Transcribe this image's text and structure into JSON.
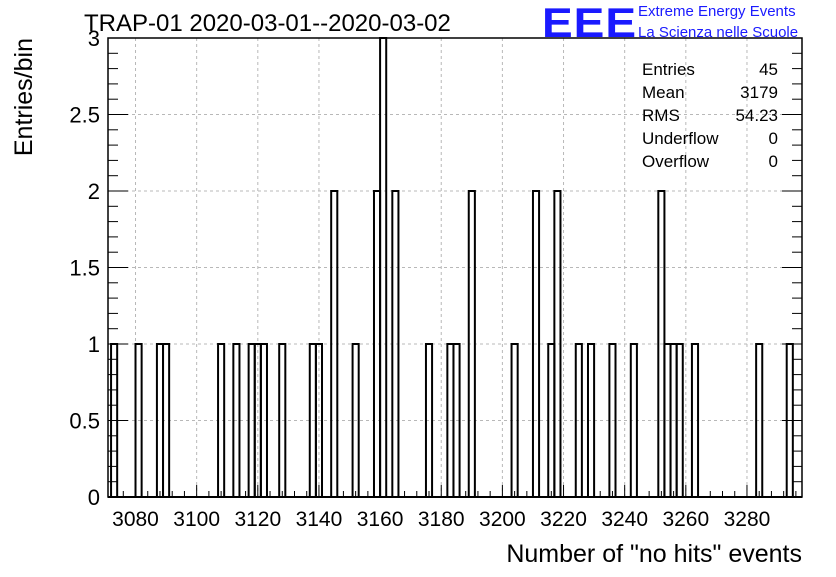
{
  "header": {
    "title": "TRAP-01 2020-03-01--2020-03-02",
    "logo_text": "EEE",
    "logo_line1": "Extreme Energy Events",
    "logo_line2": "La Scienza nelle Scuole",
    "logo_color": "#1a1aff"
  },
  "stats": [
    {
      "label": "Entries",
      "value": "45"
    },
    {
      "label": "Mean",
      "value": "3179"
    },
    {
      "label": "RMS",
      "value": "54.23"
    },
    {
      "label": "Underflow",
      "value": "0"
    },
    {
      "label": "Overflow",
      "value": "0"
    }
  ],
  "chart_data": {
    "type": "bar",
    "title": "TRAP-01 2020-03-01--2020-03-02",
    "xlabel": "Number of \"no hits\" events",
    "ylabel": "Entries/bin",
    "xlim": [
      3071,
      3298
    ],
    "ylim": [
      0,
      3
    ],
    "bin_width": 2,
    "grid": true,
    "xticks": [
      3080,
      3100,
      3120,
      3140,
      3160,
      3180,
      3200,
      3220,
      3240,
      3260,
      3280
    ],
    "yticks": [
      0,
      0.5,
      1,
      1.5,
      2,
      2.5,
      3
    ],
    "ytick_labels": [
      "0",
      "0.5",
      "1",
      "1.5",
      "2",
      "2.5",
      "3"
    ],
    "bins": [
      {
        "x": 3072,
        "count": 1
      },
      {
        "x": 3080,
        "count": 1
      },
      {
        "x": 3087,
        "count": 1
      },
      {
        "x": 3089,
        "count": 1
      },
      {
        "x": 3107,
        "count": 1
      },
      {
        "x": 3112,
        "count": 1
      },
      {
        "x": 3117,
        "count": 1
      },
      {
        "x": 3119,
        "count": 1
      },
      {
        "x": 3121,
        "count": 1
      },
      {
        "x": 3127,
        "count": 1
      },
      {
        "x": 3137,
        "count": 1
      },
      {
        "x": 3139,
        "count": 1
      },
      {
        "x": 3144,
        "count": 2
      },
      {
        "x": 3151,
        "count": 1
      },
      {
        "x": 3158,
        "count": 2
      },
      {
        "x": 3160,
        "count": 3
      },
      {
        "x": 3164,
        "count": 2
      },
      {
        "x": 3175,
        "count": 1
      },
      {
        "x": 3182,
        "count": 1
      },
      {
        "x": 3184,
        "count": 1
      },
      {
        "x": 3189,
        "count": 2
      },
      {
        "x": 3203,
        "count": 1
      },
      {
        "x": 3210,
        "count": 2
      },
      {
        "x": 3215,
        "count": 1
      },
      {
        "x": 3217,
        "count": 2
      },
      {
        "x": 3224,
        "count": 1
      },
      {
        "x": 3228,
        "count": 1
      },
      {
        "x": 3235,
        "count": 1
      },
      {
        "x": 3242,
        "count": 1
      },
      {
        "x": 3251,
        "count": 2
      },
      {
        "x": 3253,
        "count": 1
      },
      {
        "x": 3255,
        "count": 1
      },
      {
        "x": 3257,
        "count": 1
      },
      {
        "x": 3262,
        "count": 1
      },
      {
        "x": 3283,
        "count": 1
      },
      {
        "x": 3293,
        "count": 1
      }
    ]
  }
}
